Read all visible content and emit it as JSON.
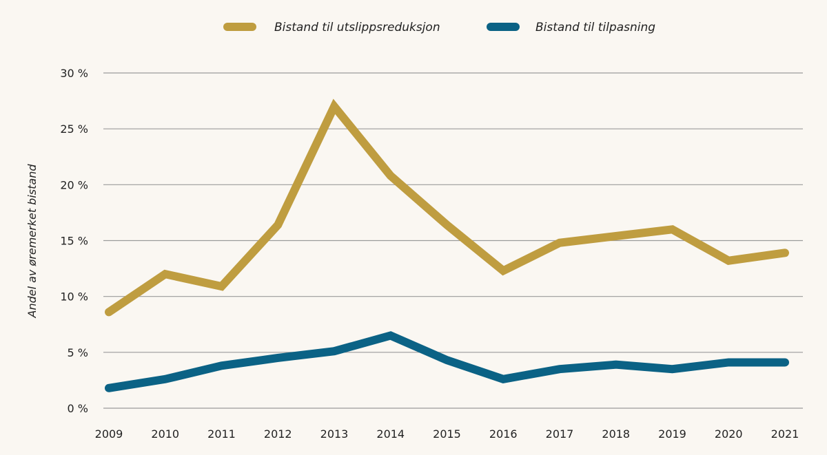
{
  "chart_data": {
    "type": "line",
    "title": "",
    "xlabel": "",
    "ylabel": "Andel av øremerket bistand",
    "x": [
      "2009",
      "2010",
      "2011",
      "2012",
      "2013",
      "2014",
      "2015",
      "2016",
      "2017",
      "2018",
      "2019",
      "2020",
      "2021"
    ],
    "ylim": [
      0,
      30
    ],
    "yticks": [
      0,
      5,
      10,
      15,
      20,
      25,
      30
    ],
    "ytick_labels": [
      "0 %",
      "5 %",
      "10 %",
      "15 %",
      "20 %",
      "25 %",
      "30 %"
    ],
    "grid": true,
    "legend_position": "top-center",
    "series": [
      {
        "name": "Bistand til utslippsreduksjon",
        "color": "#bf9d40",
        "values": [
          8.6,
          12.0,
          10.9,
          16.4,
          27.0,
          20.8,
          16.4,
          12.3,
          14.8,
          15.4,
          16.0,
          13.2,
          13.9
        ]
      },
      {
        "name": "Bistand til tilpasning",
        "color": "#0b6285",
        "values": [
          1.8,
          2.6,
          3.8,
          4.5,
          5.1,
          6.5,
          4.3,
          2.6,
          3.5,
          3.9,
          3.5,
          4.1,
          4.1
        ]
      }
    ]
  },
  "colors": {
    "background": "#faf7f2",
    "grid": "#9a9a9a",
    "text": "#222222"
  }
}
